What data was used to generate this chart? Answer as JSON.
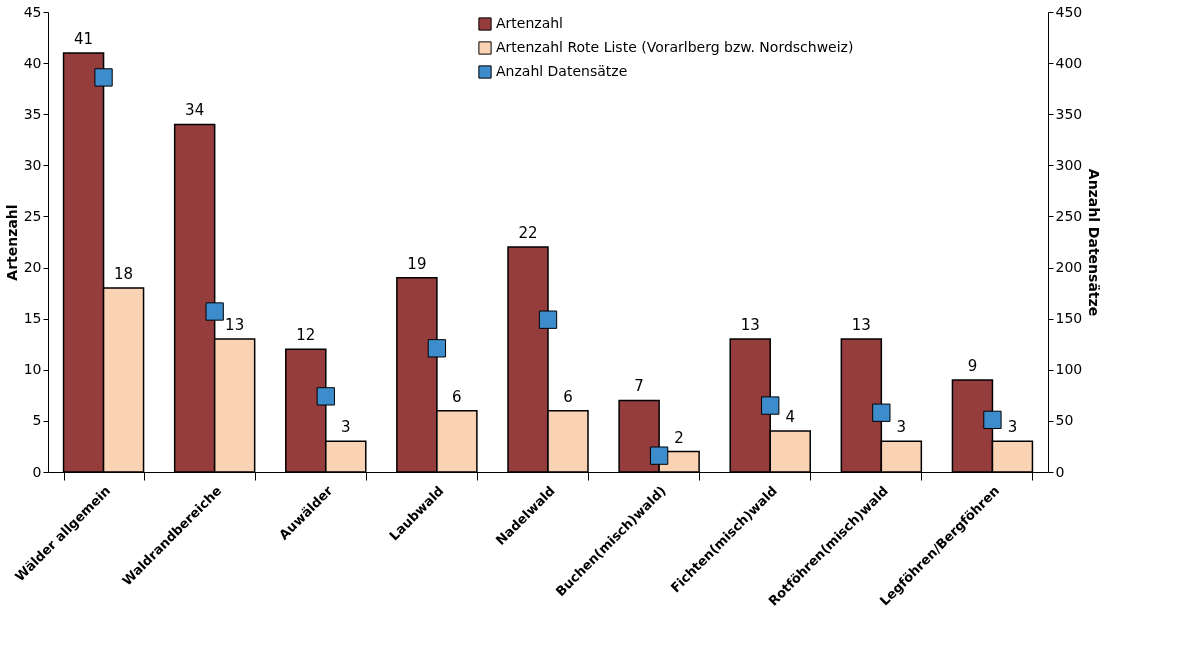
{
  "chart_data": {
    "type": "bar",
    "categories": [
      "Wälder allgemein",
      "Waldrandbereiche",
      "Auwälder",
      "Laubwald",
      "Nadelwald",
      "Buchen(misch)wald)",
      "Fichten(misch)wald",
      "Rotföhren(misch)wald",
      "Legföhren/Bergföhren"
    ],
    "series": [
      {
        "name": "Artenzahl",
        "color": "#953c3c",
        "values": [
          41,
          34,
          12,
          19,
          22,
          7,
          13,
          13,
          9
        ],
        "value_labels": [
          "41",
          "34",
          "12",
          "19",
          "22",
          "7",
          "13",
          "13",
          "9"
        ]
      },
      {
        "name": "Artenzahl Rote Liste (Vorarlberg bzw. Nordschweiz)",
        "color": "#fad3b4",
        "values": [
          18,
          13,
          3,
          6,
          6,
          2,
          4,
          3,
          3
        ],
        "value_labels": [
          "18",
          "13",
          "3",
          "6",
          "6",
          "2",
          "4",
          "3",
          "3"
        ]
      },
      {
        "name": "Anzahl Datensätze",
        "color": "#3d8ccb",
        "type": "scatter",
        "axis": "y2",
        "marker": "square",
        "values": [
          386,
          157,
          74,
          121,
          149,
          16,
          65,
          58,
          51
        ]
      }
    ],
    "ylabel": "Artenzahl",
    "y2label": "Anzahl Datensätze",
    "ylim": [
      0,
      45
    ],
    "yticks": [
      0,
      5,
      10,
      15,
      20,
      25,
      30,
      35,
      40,
      45
    ],
    "y2lim": [
      0,
      450
    ],
    "y2ticks": [
      0,
      50,
      100,
      150,
      200,
      250,
      300,
      350,
      400,
      450
    ],
    "legend": "top",
    "grid": false
  }
}
